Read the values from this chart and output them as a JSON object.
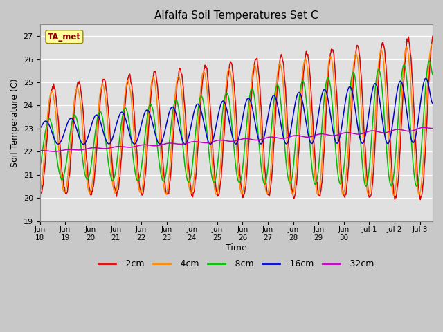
{
  "title": "Alfalfa Soil Temperatures Set C",
  "xlabel": "Time",
  "ylabel": "Soil Temperature (C)",
  "ylim": [
    19.0,
    27.5
  ],
  "yticks": [
    19.0,
    20.0,
    21.0,
    22.0,
    23.0,
    24.0,
    25.0,
    26.0,
    27.0
  ],
  "bg_color": "#e0e0e0",
  "fig_color": "#c8c8c8",
  "colors": {
    "-2cm": "#dd0000",
    "-4cm": "#ff8800",
    "-8cm": "#00bb00",
    "-16cm": "#0000cc",
    "-32cm": "#bb00bb"
  },
  "linewidth": 1.1,
  "ta_met_label": "TA_met",
  "x_tick_labels": [
    "Jun\n18",
    "Jun\n19",
    "Jun\n20",
    "Jun\n21",
    "Jun\n22",
    "Jun\n23",
    "Jun\n24",
    "Jun\n25",
    "Jun\n26",
    "Jun\n27",
    "Jun\n28",
    "Jun\n29",
    "Jun\n30",
    "Jul 1",
    "Jul 2",
    "Jul 3"
  ],
  "n_points": 800,
  "start_day": 0.0,
  "end_day": 15.5
}
